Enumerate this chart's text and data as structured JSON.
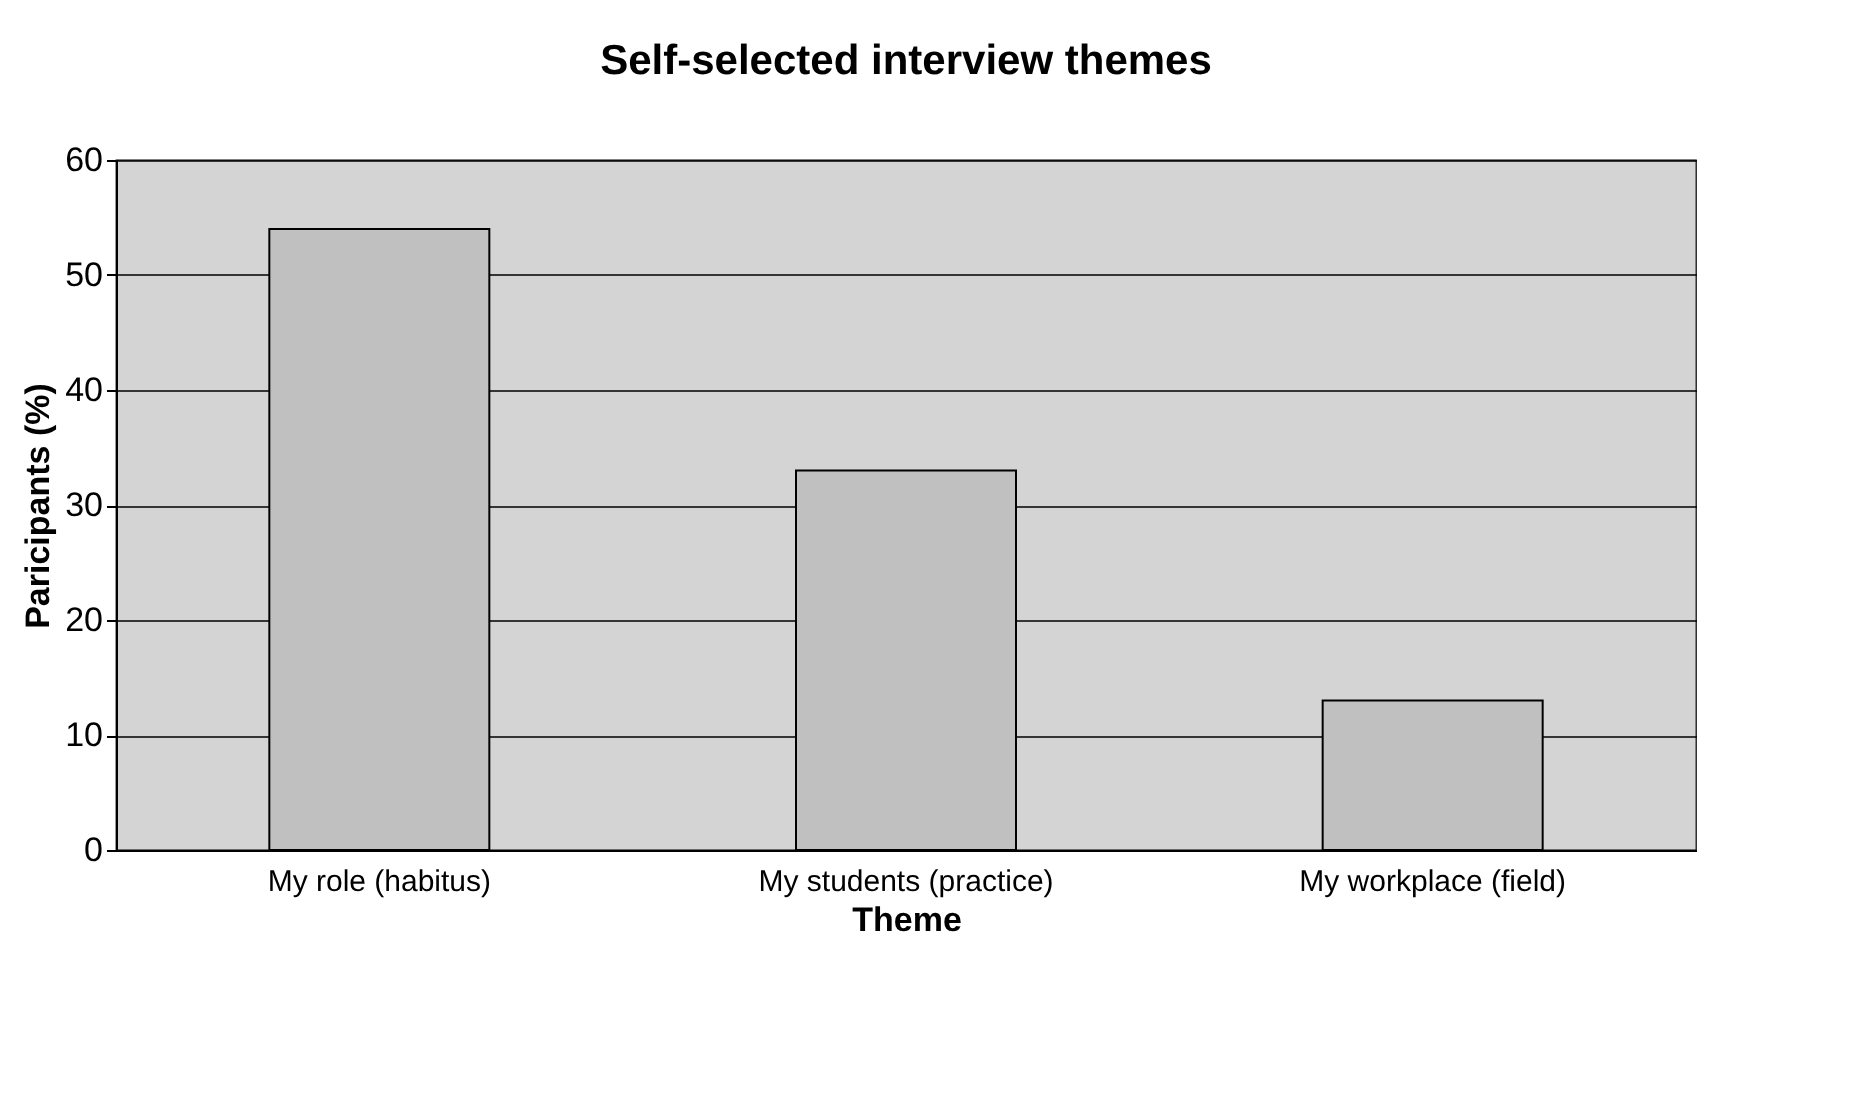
{
  "chart_data": {
    "type": "bar",
    "title": "Self-selected interview themes",
    "xlabel": "Theme",
    "ylabel": "Paricipants (%)",
    "categories": [
      "My role (habitus)",
      "My students (practice)",
      "My workplace (field)"
    ],
    "values": [
      54,
      33,
      13
    ],
    "color": "#c0c0c0",
    "ylim": [
      0,
      60
    ],
    "yticks": [
      0,
      10,
      20,
      30,
      40,
      50,
      60
    ],
    "grid": "y"
  }
}
